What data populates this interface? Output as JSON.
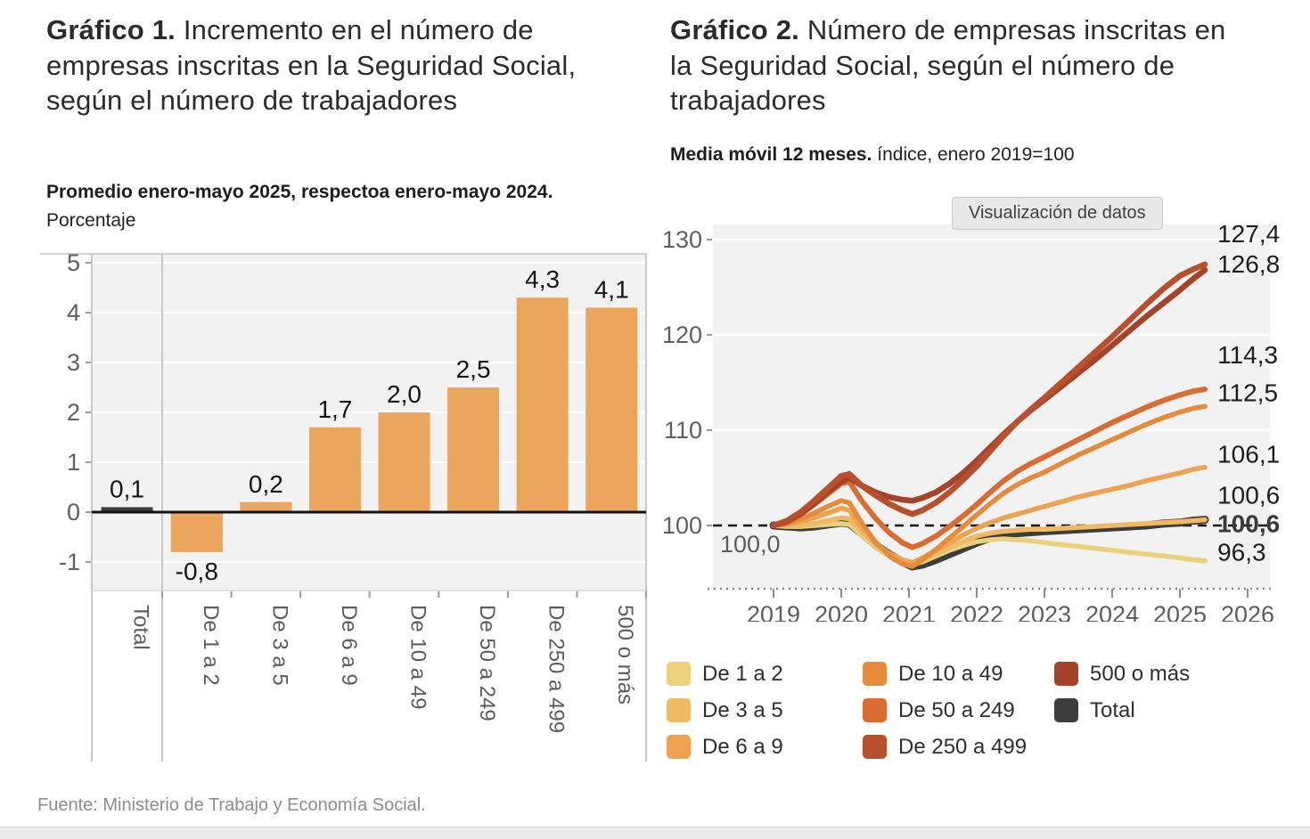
{
  "page": {
    "source_note": "Fuente: Ministerio de Trabajo y Economía Social."
  },
  "chart1": {
    "title_lead": "Gráfico 1.",
    "title_rest": " Incremento en el número de empresas inscritas en la Seguridad Social, según el número de trabajadores",
    "subtitle_bold": "Promedio enero-mayo 2025, respectoa enero-mayo 2024.",
    "subtitle_rest": " Porcentaje"
  },
  "chart2": {
    "title_lead": "Gráfico 2.",
    "title_rest": " Número de empresas inscritas en la Seguridad Social, según el número de trabajadores",
    "subtitle_bold": "Media móvil 12 meses.",
    "subtitle_rest": " índice, enero 2019=100",
    "toolbar_button": "Visualización de datos",
    "legend": [
      {
        "label": "De 1 a 2",
        "color": "#ecd17c"
      },
      {
        "label": "De 3 a 5",
        "color": "#efb965"
      },
      {
        "label": "De 6 a 9",
        "color": "#eda352"
      },
      {
        "label": "De 10 a 49",
        "color": "#e68a3c"
      },
      {
        "label": "De 50 a 249",
        "color": "#d96c31"
      },
      {
        "label": "De 250 a 499",
        "color": "#b8502d"
      },
      {
        "label": "500 o más",
        "color": "#a5432a"
      },
      {
        "label": "Total",
        "color": "#3d3d3d"
      }
    ]
  },
  "chart_data": [
    {
      "type": "bar",
      "title": "Incremento en el número de empresas inscritas en la Seguridad Social, según el número de trabajadores",
      "subtitle": "Promedio enero-mayo 2025, respectoa enero-mayo 2024. Porcentaje",
      "categories": [
        "Total",
        "De 1 a 2",
        "De 3 a 5",
        "De 6 a 9",
        "De 10 a 49",
        "De 50 a 249",
        "De 250 a 499",
        "500 o más"
      ],
      "values": [
        0.1,
        -0.8,
        0.2,
        1.7,
        2.0,
        2.5,
        4.3,
        4.1
      ],
      "value_labels": [
        "0,1",
        "-0,8",
        "0,2",
        "1,7",
        "2,0",
        "2,5",
        "4,3",
        "4,1"
      ],
      "colors": [
        "#3d3d3d",
        "#eba55c",
        "#eba55c",
        "#eba55c",
        "#eba55c",
        "#eba55c",
        "#eba55c",
        "#eba55c"
      ],
      "yticks": [
        5,
        4,
        3,
        2,
        1,
        0,
        -1
      ],
      "ylim": [
        -1.57,
        5.18
      ],
      "grid": true,
      "xlabel": "",
      "ylabel": "Porcentaje"
    },
    {
      "type": "line",
      "title": "Número de empresas inscritas en la Seguridad Social, según el número de trabajadores",
      "subtitle": "Media móvil 12 meses. índice, enero 2019=100",
      "yticks": [
        100,
        110,
        120,
        130
      ],
      "ylim": [
        93.4,
        131.6
      ],
      "xticks": [
        2019,
        2020,
        2021,
        2022,
        2023,
        2024,
        2025,
        2026
      ],
      "xlim": [
        2018.1,
        2026.33
      ],
      "baseline_value": 100,
      "baseline_label": "100,0",
      "legend_position": "bottom",
      "x": [
        2019.0,
        2019.2,
        2019.4,
        2019.6,
        2019.8,
        2020.0,
        2020.12,
        2020.3,
        2020.5,
        2020.7,
        2020.9,
        2021.05,
        2021.2,
        2021.4,
        2021.6,
        2021.8,
        2022.0,
        2022.2,
        2022.4,
        2022.6,
        2022.8,
        2023.0,
        2023.25,
        2023.5,
        2023.75,
        2024.0,
        2024.25,
        2024.5,
        2024.75,
        2025.0,
        2025.2,
        2025.37
      ],
      "series": [
        {
          "name": "Total",
          "color": "#3d3d3d",
          "width": 9,
          "bold_label": true,
          "end_label": "100,6",
          "values": [
            100,
            99.9,
            99.8,
            99.9,
            100.1,
            100.3,
            100.2,
            99.2,
            98.0,
            97.0,
            96.2,
            95.7,
            95.9,
            96.4,
            97.0,
            97.6,
            98.2,
            98.7,
            99.0,
            99.2,
            99.3,
            99.4,
            99.5,
            99.6,
            99.7,
            99.8,
            99.9,
            100.0,
            100.2,
            100.3,
            100.5,
            100.6
          ]
        },
        {
          "name": "De 1 a 2",
          "color": "#ecd17c",
          "width": 5.5,
          "bold_label": false,
          "end_label": "96,3",
          "values": [
            100,
            99.9,
            99.9,
            100.0,
            100.1,
            100.2,
            100.1,
            99.0,
            97.8,
            96.8,
            96.1,
            95.9,
            96.2,
            96.8,
            97.4,
            97.9,
            98.3,
            98.5,
            98.6,
            98.5,
            98.4,
            98.2,
            98.0,
            97.8,
            97.6,
            97.4,
            97.2,
            97.0,
            96.8,
            96.6,
            96.4,
            96.3
          ]
        },
        {
          "name": "De 3 a 5",
          "color": "#efb965",
          "width": 5.5,
          "bold_label": false,
          "end_label": "100,6",
          "values": [
            100,
            100.0,
            100.0,
            100.2,
            100.5,
            100.8,
            100.7,
            99.3,
            98.0,
            97.0,
            96.3,
            96.0,
            96.4,
            97.0,
            97.7,
            98.3,
            98.9,
            99.2,
            99.4,
            99.5,
            99.6,
            99.6,
            99.7,
            99.8,
            99.9,
            100.0,
            100.1,
            100.2,
            100.3,
            100.4,
            100.5,
            100.6
          ]
        },
        {
          "name": "De 6 a 9",
          "color": "#eda352",
          "width": 5.5,
          "bold_label": false,
          "end_label": "106,1",
          "values": [
            100,
            100.1,
            100.4,
            100.8,
            101.3,
            101.8,
            101.6,
            99.8,
            98.2,
            97.1,
            96.4,
            96.1,
            96.6,
            97.4,
            98.2,
            99.0,
            99.7,
            100.3,
            100.8,
            101.2,
            101.6,
            102.0,
            102.5,
            103.0,
            103.4,
            103.8,
            104.2,
            104.7,
            105.1,
            105.5,
            105.9,
            106.1
          ]
        },
        {
          "name": "De 10 a 49",
          "color": "#e68a3c",
          "width": 5.5,
          "bold_label": false,
          "end_label": "112,5",
          "values": [
            100,
            100.2,
            100.7,
            101.3,
            102.0,
            102.6,
            102.4,
            100.3,
            98.3,
            96.9,
            96.0,
            95.7,
            96.4,
            97.5,
            98.7,
            99.9,
            101.1,
            102.3,
            103.4,
            104.3,
            105.0,
            105.6,
            106.5,
            107.4,
            108.2,
            109.0,
            109.8,
            110.6,
            111.3,
            111.9,
            112.3,
            112.5
          ]
        },
        {
          "name": "De 50 a 249",
          "color": "#d96c31",
          "width": 6,
          "bold_label": false,
          "end_label": "114,3",
          "values": [
            100,
            100.4,
            101.2,
            102.2,
            103.3,
            104.4,
            104.6,
            102.6,
            100.8,
            99.3,
            98.2,
            97.7,
            98.1,
            98.9,
            99.9,
            101.0,
            102.2,
            103.5,
            104.7,
            105.7,
            106.5,
            107.2,
            108.1,
            109.0,
            109.9,
            110.8,
            111.6,
            112.4,
            113.1,
            113.7,
            114.1,
            114.3
          ]
        },
        {
          "name": "500 o más",
          "color": "#a5432a",
          "width": 6.5,
          "bold_label": false,
          "end_label": "126,8",
          "values": [
            100,
            100.4,
            101.2,
            102.3,
            103.5,
            104.6,
            105.0,
            104.2,
            103.5,
            103.0,
            102.7,
            102.6,
            102.9,
            103.5,
            104.4,
            105.5,
            106.8,
            108.2,
            109.6,
            110.9,
            112.1,
            113.2,
            114.6,
            116.0,
            117.4,
            118.9,
            120.4,
            121.9,
            123.3,
            124.7,
            125.9,
            126.8
          ]
        },
        {
          "name": "De 250 a 499",
          "color": "#b8502d",
          "width": 6.5,
          "bold_label": false,
          "end_label": "127,4",
          "values": [
            100,
            100.5,
            101.4,
            102.6,
            103.9,
            105.2,
            105.4,
            104.2,
            103.2,
            102.3,
            101.6,
            101.2,
            101.6,
            102.4,
            103.5,
            104.8,
            106.2,
            107.8,
            109.4,
            110.9,
            112.2,
            113.4,
            115.0,
            116.6,
            118.2,
            119.8,
            121.5,
            123.2,
            124.8,
            126.2,
            126.9,
            127.4
          ]
        }
      ]
    }
  ]
}
